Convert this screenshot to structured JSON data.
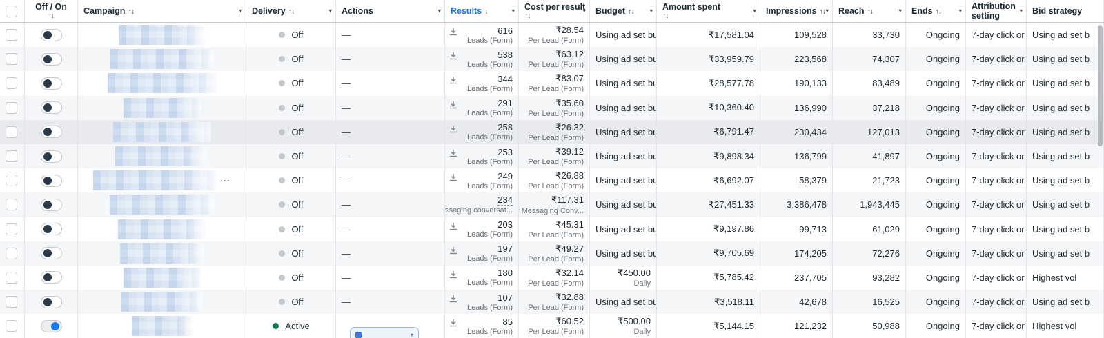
{
  "app": "Ads Manager campaigns table",
  "colors": {
    "accent_blue": "#1b74e4",
    "toggle_on_knob": "#1877f2",
    "active_green": "#0e7a4c",
    "off_gray": "#c3c8cd",
    "row_hover": "#e9eaee"
  },
  "icons": {
    "caret_down": "▾",
    "sort_both": "↑↓",
    "sort_down": "↓",
    "download": "download-icon",
    "em_dash": "—",
    "more_dots": "···"
  },
  "columns": {
    "onoff": {
      "line1": "Off / On",
      "sort": "↑↓"
    },
    "campaign": {
      "label": "Campaign",
      "sort": "↑↓",
      "caret": true
    },
    "delivery": {
      "label": "Delivery",
      "sort": "↑↓",
      "caret": true
    },
    "actions": {
      "label": "Actions",
      "caret": true
    },
    "results": {
      "label": "Results",
      "sort": "↓",
      "caret": true,
      "accent": true
    },
    "cost": {
      "line1": "Cost per result",
      "sort": "↑↓",
      "caret": true,
      "two_line": true
    },
    "budget": {
      "label": "Budget",
      "sort": "↑↓",
      "caret": true
    },
    "spent": {
      "line1": "Amount spent",
      "sort": "↑↓",
      "caret": true,
      "two_line": true
    },
    "impressions": {
      "label": "Impressions",
      "sort": "↑↓",
      "caret": true
    },
    "reach": {
      "label": "Reach",
      "sort": "↑↓",
      "caret": true
    },
    "ends": {
      "label": "Ends",
      "sort": "↑↓",
      "caret": true
    },
    "attribution": {
      "line1": "Attribution",
      "line2": "setting",
      "caret": true
    },
    "bid": {
      "label": "Bid strategy"
    }
  },
  "campaign_blur_widths": [
    125,
    150,
    158,
    112,
    142,
    136,
    178,
    152,
    127,
    122,
    112,
    117,
    88
  ],
  "rows": [
    {
      "toggle": "off",
      "delivery": "Off",
      "actions": "dash",
      "download": true,
      "results": "616",
      "results_sub": "Leads (Form)",
      "cost": "₹28.54",
      "cost_sub": "Per Lead (Form)",
      "budget": "Using ad set bu...",
      "budget_sub": "",
      "budget_align": "left",
      "spent": "₹17,581.04",
      "impressions": "109,528",
      "reach": "33,730",
      "ends": "Ongoing",
      "attribution": "7-day click or ...",
      "bid": "Using ad set b"
    },
    {
      "toggle": "off",
      "delivery": "Off",
      "actions": "dash",
      "download": true,
      "results": "538",
      "results_sub": "Leads (Form)",
      "cost": "₹63.12",
      "cost_sub": "Per Lead (Form)",
      "budget": "Using ad set bu...",
      "budget_sub": "",
      "budget_align": "left",
      "spent": "₹33,959.79",
      "impressions": "223,568",
      "reach": "74,307",
      "ends": "Ongoing",
      "attribution": "7-day click or ...",
      "bid": "Using ad set b"
    },
    {
      "toggle": "off",
      "delivery": "Off",
      "actions": "dash",
      "download": true,
      "results": "344",
      "results_sub": "Leads (Form)",
      "cost": "₹83.07",
      "cost_sub": "Per Lead (Form)",
      "budget": "Using ad set bu...",
      "budget_sub": "",
      "budget_align": "left",
      "spent": "₹28,577.78",
      "impressions": "190,133",
      "reach": "83,489",
      "ends": "Ongoing",
      "attribution": "7-day click or ...",
      "bid": "Using ad set b"
    },
    {
      "toggle": "off",
      "delivery": "Off",
      "actions": "dash",
      "download": true,
      "results": "291",
      "results_sub": "Leads (Form)",
      "cost": "₹35.60",
      "cost_sub": "Per Lead (Form)",
      "budget": "Using ad set bu...",
      "budget_sub": "",
      "budget_align": "left",
      "spent": "₹10,360.40",
      "impressions": "136,990",
      "reach": "37,218",
      "ends": "Ongoing",
      "attribution": "7-day click or ...",
      "bid": "Using ad set b"
    },
    {
      "toggle": "off",
      "delivery": "Off",
      "actions": "dash",
      "download": true,
      "highlight": true,
      "results": "258",
      "results_sub": "Leads (Form)",
      "cost": "₹26.32",
      "cost_sub": "Per Lead (Form)",
      "budget": "Using ad set bu...",
      "budget_sub": "",
      "budget_align": "left",
      "spent": "₹6,791.47",
      "impressions": "230,434",
      "reach": "127,013",
      "ends": "Ongoing",
      "attribution": "7-day click or ...",
      "bid": "Using ad set b"
    },
    {
      "toggle": "off",
      "delivery": "Off",
      "actions": "dash",
      "download": true,
      "results": "253",
      "results_sub": "Leads (Form)",
      "cost": "₹39.12",
      "cost_sub": "Per Lead (Form)",
      "budget": "Using ad set bu...",
      "budget_sub": "",
      "budget_align": "left",
      "spent": "₹9,898.34",
      "impressions": "136,799",
      "reach": "41,897",
      "ends": "Ongoing",
      "attribution": "7-day click or ...",
      "bid": "Using ad set b"
    },
    {
      "toggle": "off",
      "delivery": "Off",
      "actions": "dash",
      "download": true,
      "more_dots": true,
      "results": "249",
      "results_sub": "Leads (Form)",
      "cost": "₹26.88",
      "cost_sub": "Per Lead (Form)",
      "budget": "Using ad set bu...",
      "budget_sub": "",
      "budget_align": "left",
      "spent": "₹6,692.07",
      "impressions": "58,379",
      "reach": "21,723",
      "ends": "Ongoing",
      "attribution": "7-day click or ...",
      "bid": "Using ad set b"
    },
    {
      "toggle": "off",
      "delivery": "Off",
      "actions": "dash",
      "download": false,
      "estimated": true,
      "results": "234",
      "results_sub": "Messaging conversat...",
      "cost": "₹117.31",
      "cost_sub": "Per Messaging Conv...",
      "budget": "Using ad set bu...",
      "budget_sub": "",
      "budget_align": "left",
      "spent": "₹27,451.33",
      "impressions": "3,386,478",
      "reach": "1,943,445",
      "ends": "Ongoing",
      "attribution": "7-day click or ...",
      "bid": "Using ad set b"
    },
    {
      "toggle": "off",
      "delivery": "Off",
      "actions": "dash",
      "download": true,
      "results": "203",
      "results_sub": "Leads (Form)",
      "cost": "₹45.31",
      "cost_sub": "Per Lead (Form)",
      "budget": "Using ad set bu...",
      "budget_sub": "",
      "budget_align": "left",
      "spent": "₹9,197.86",
      "impressions": "99,713",
      "reach": "61,029",
      "ends": "Ongoing",
      "attribution": "7-day click or ...",
      "bid": "Using ad set b"
    },
    {
      "toggle": "off",
      "delivery": "Off",
      "actions": "dash",
      "download": true,
      "results": "197",
      "results_sub": "Leads (Form)",
      "cost": "₹49.27",
      "cost_sub": "Per Lead (Form)",
      "budget": "Using ad set bu...",
      "budget_sub": "",
      "budget_align": "left",
      "spent": "₹9,705.69",
      "impressions": "174,205",
      "reach": "72,276",
      "ends": "Ongoing",
      "attribution": "7-day click or ...",
      "bid": "Using ad set b"
    },
    {
      "toggle": "off",
      "delivery": "Off",
      "actions": "dash",
      "download": true,
      "results": "180",
      "results_sub": "Leads (Form)",
      "cost": "₹32.14",
      "cost_sub": "Per Lead (Form)",
      "budget": "₹450.00",
      "budget_sub": "Daily",
      "budget_align": "right",
      "spent": "₹5,785.42",
      "impressions": "237,705",
      "reach": "93,282",
      "ends": "Ongoing",
      "attribution": "7-day click or ...",
      "bid": "Highest vol"
    },
    {
      "toggle": "off",
      "delivery": "Off",
      "actions": "dash",
      "download": true,
      "results": "107",
      "results_sub": "Leads (Form)",
      "cost": "₹32.88",
      "cost_sub": "Per Lead (Form)",
      "budget": "Using ad set bu...",
      "budget_sub": "",
      "budget_align": "left",
      "spent": "₹3,518.11",
      "impressions": "42,678",
      "reach": "16,525",
      "ends": "Ongoing",
      "attribution": "7-day click or ...",
      "bid": "Using ad set b"
    },
    {
      "toggle": "on",
      "delivery": "Active",
      "actions": "pill",
      "download": true,
      "results": "85",
      "results_sub": "Leads (Form)",
      "cost": "₹60.52",
      "cost_sub": "Per Lead (Form)",
      "budget": "₹500.00",
      "budget_sub": "Daily",
      "budget_align": "right",
      "spent": "₹5,144.15",
      "impressions": "121,232",
      "reach": "50,988",
      "ends": "Ongoing",
      "attribution": "7-day click or ...",
      "bid": "Highest vol"
    }
  ]
}
